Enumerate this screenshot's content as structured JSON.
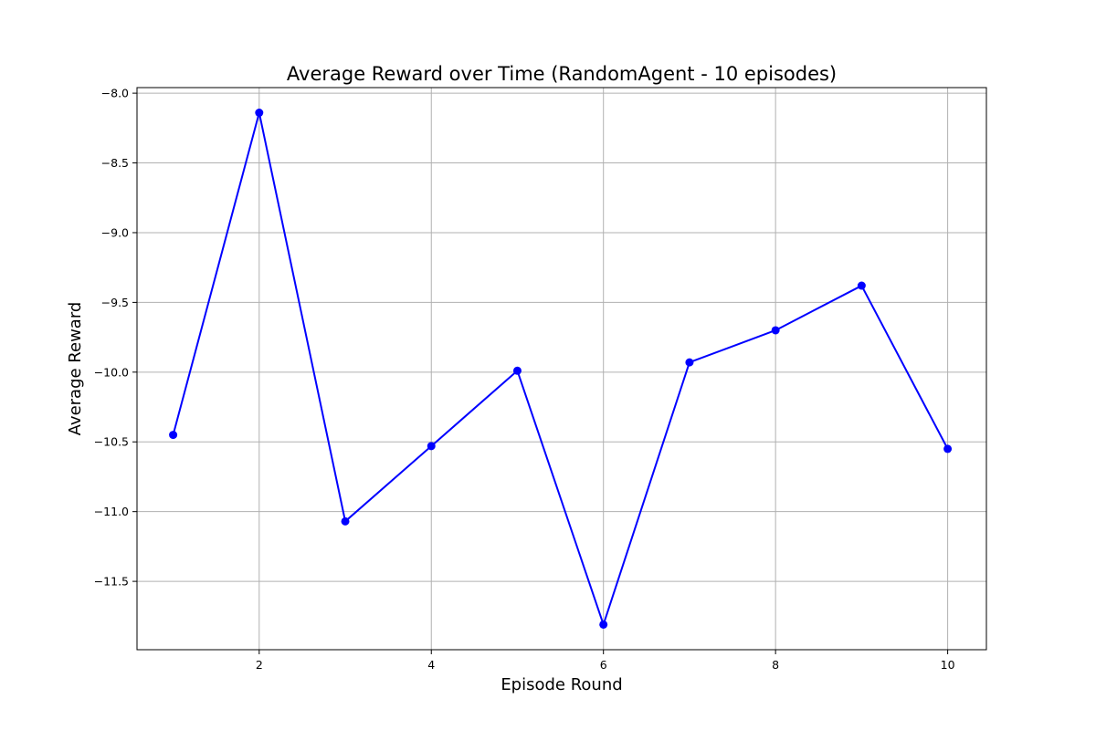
{
  "chart_data": {
    "type": "line",
    "title": "Average Reward over Time (RandomAgent - 10 episodes)",
    "xlabel": "Episode Round",
    "ylabel": "Average Reward",
    "x": [
      1,
      2,
      3,
      4,
      5,
      6,
      7,
      8,
      9,
      10
    ],
    "series": [
      {
        "values": [
          -10.45,
          -8.14,
          -11.07,
          -10.53,
          -9.99,
          -11.81,
          -9.93,
          -9.7,
          -9.38,
          -10.55
        ],
        "color": "#0000ff",
        "marker": "circle"
      }
    ],
    "xlim": [
      0.58,
      10.45
    ],
    "ylim": [
      -11.99,
      -7.96
    ],
    "xticks": [
      2,
      4,
      6,
      8,
      10
    ],
    "xtick_labels": [
      "2",
      "4",
      "6",
      "8",
      "10"
    ],
    "yticks": [
      -8.0,
      -8.5,
      -9.0,
      -9.5,
      -10.0,
      -10.5,
      -11.0,
      -11.5
    ],
    "ytick_labels": [
      "−8.0",
      "−8.5",
      "−9.0",
      "−9.5",
      "−10.0",
      "−10.5",
      "−11.0",
      "−11.5"
    ],
    "grid": true,
    "legend": "none"
  }
}
